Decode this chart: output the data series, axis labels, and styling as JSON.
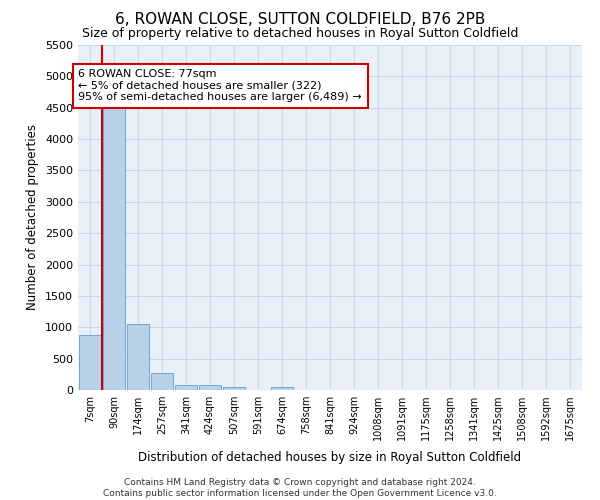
{
  "title": "6, ROWAN CLOSE, SUTTON COLDFIELD, B76 2PB",
  "subtitle": "Size of property relative to detached houses in Royal Sutton Coldfield",
  "xlabel": "Distribution of detached houses by size in Royal Sutton Coldfield",
  "ylabel": "Number of detached properties",
  "footer_line1": "Contains HM Land Registry data © Crown copyright and database right 2024.",
  "footer_line2": "Contains public sector information licensed under the Open Government Licence v3.0.",
  "bin_labels": [
    "7sqm",
    "90sqm",
    "174sqm",
    "257sqm",
    "341sqm",
    "424sqm",
    "507sqm",
    "591sqm",
    "674sqm",
    "758sqm",
    "841sqm",
    "924sqm",
    "1008sqm",
    "1091sqm",
    "1175sqm",
    "1258sqm",
    "1341sqm",
    "1425sqm",
    "1508sqm",
    "1592sqm",
    "1675sqm"
  ],
  "bin_values": [
    870,
    4550,
    1060,
    270,
    85,
    85,
    55,
    0,
    55,
    0,
    0,
    0,
    0,
    0,
    0,
    0,
    0,
    0,
    0,
    0,
    0
  ],
  "bar_color": "#b8d0e8",
  "bar_edge_color": "#6aaad4",
  "property_line_color": "#cc0000",
  "annotation_line1": "6 ROWAN CLOSE: 77sqm",
  "annotation_line2": "← 5% of detached houses are smaller (322)",
  "annotation_line3": "95% of semi-detached houses are larger (6,489) →",
  "annotation_box_color": "#cc0000",
  "ylim": [
    0,
    5500
  ],
  "yticks": [
    0,
    500,
    1000,
    1500,
    2000,
    2500,
    3000,
    3500,
    4000,
    4500,
    5000,
    5500
  ],
  "grid_color": "#c8d8e8",
  "background_color": "#eaf0f8",
  "title_fontsize": 11,
  "subtitle_fontsize": 9,
  "axis_label_fontsize": 8.5,
  "tick_fontsize": 8,
  "annotation_fontsize": 8,
  "property_line_x": 0.5
}
